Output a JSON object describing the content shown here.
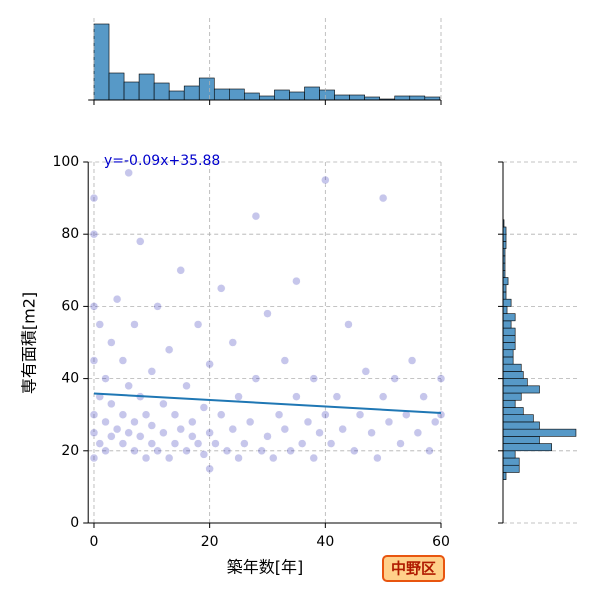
{
  "chart_data": [
    {
      "type": "scatter",
      "xlabel": "築年数[年]",
      "ylabel": "専有面積[m2]",
      "xlim": [
        -1,
        60
      ],
      "ylim": [
        0,
        100
      ],
      "xticks": [
        0,
        20,
        40,
        60
      ],
      "yticks": [
        0,
        20,
        40,
        60,
        80,
        100
      ],
      "grid": true,
      "color": "#1a1ab0",
      "fit": {
        "slope": -0.09,
        "intercept": 35.88,
        "label": "y=-0.09x+35.88",
        "color": "#1f77b4",
        "label_color": "#0000cc"
      },
      "badge": "中野区",
      "x": [
        0,
        0,
        0,
        0,
        0,
        0,
        0,
        1,
        1,
        1,
        2,
        2,
        2,
        3,
        3,
        3,
        4,
        4,
        5,
        5,
        5,
        6,
        6,
        6,
        7,
        7,
        7,
        8,
        8,
        8,
        9,
        9,
        10,
        10,
        10,
        11,
        11,
        12,
        12,
        13,
        13,
        14,
        14,
        15,
        15,
        16,
        16,
        17,
        17,
        18,
        18,
        19,
        19,
        20,
        20,
        20,
        21,
        22,
        22,
        23,
        24,
        24,
        25,
        25,
        26,
        27,
        28,
        28,
        29,
        30,
        30,
        31,
        32,
        33,
        33,
        34,
        35,
        35,
        36,
        37,
        38,
        38,
        39,
        40,
        40,
        41,
        42,
        43,
        44,
        45,
        46,
        47,
        48,
        49,
        50,
        50,
        51,
        52,
        53,
        54,
        55,
        56,
        57,
        58,
        59,
        60,
        60
      ],
      "y": [
        25,
        30,
        45,
        60,
        80,
        90,
        18,
        22,
        35,
        55,
        28,
        40,
        20,
        24,
        33,
        50,
        26,
        62,
        22,
        30,
        45,
        25,
        38,
        97,
        20,
        28,
        55,
        24,
        35,
        78,
        18,
        30,
        22,
        42,
        27,
        20,
        60,
        25,
        33,
        18,
        48,
        22,
        30,
        26,
        70,
        20,
        38,
        24,
        28,
        22,
        55,
        19,
        32,
        25,
        44,
        15,
        22,
        30,
        65,
        20,
        26,
        50,
        18,
        35,
        22,
        28,
        40,
        85,
        20,
        24,
        58,
        18,
        30,
        26,
        45,
        20,
        35,
        67,
        22,
        28,
        18,
        40,
        25,
        30,
        95,
        22,
        35,
        26,
        55,
        20,
        30,
        42,
        25,
        18,
        35,
        90,
        28,
        40,
        22,
        30,
        45,
        25,
        35,
        20,
        28,
        40,
        30
      ]
    },
    {
      "type": "histogram",
      "orientation": "vertical",
      "color": "#5799c7",
      "xlim": [
        -1,
        60
      ],
      "xticks": [
        0,
        20,
        40,
        60
      ],
      "ylim": [
        0,
        82
      ],
      "bins": [
        0,
        2.6,
        5.2,
        7.8,
        10.4,
        13,
        15.6,
        18.2,
        20.8,
        23.4,
        26,
        28.6,
        31.2,
        33.8,
        36.4,
        39,
        41.6,
        44.2,
        46.8,
        49.4,
        52,
        54.6,
        57.2,
        59.8
      ],
      "counts": [
        76,
        27,
        18,
        26,
        17,
        9,
        14,
        22,
        11,
        11,
        7,
        4,
        10,
        8,
        13,
        10,
        5,
        5,
        3,
        1,
        4,
        4,
        3
      ]
    },
    {
      "type": "histogram",
      "orientation": "horizontal",
      "color": "#5799c7",
      "ylim": [
        0,
        100
      ],
      "yticks": [
        0,
        20,
        40,
        60,
        80,
        100
      ],
      "xlim": [
        0,
        75
      ],
      "bins": [
        12,
        14,
        16,
        18,
        20,
        22,
        24,
        26,
        28,
        30,
        32,
        34,
        36,
        38,
        40,
        42,
        44,
        46,
        48,
        50,
        52,
        54,
        56,
        58,
        60,
        62,
        64,
        66,
        68,
        70,
        72,
        74,
        76,
        78,
        80,
        82,
        84
      ],
      "counts": [
        3,
        16,
        16,
        12,
        48,
        36,
        72,
        36,
        30,
        20,
        12,
        18,
        36,
        24,
        20,
        18,
        10,
        10,
        12,
        12,
        12,
        8,
        12,
        4,
        8,
        3,
        3,
        5,
        2,
        2,
        2,
        2,
        3,
        3,
        3,
        1
      ]
    }
  ]
}
